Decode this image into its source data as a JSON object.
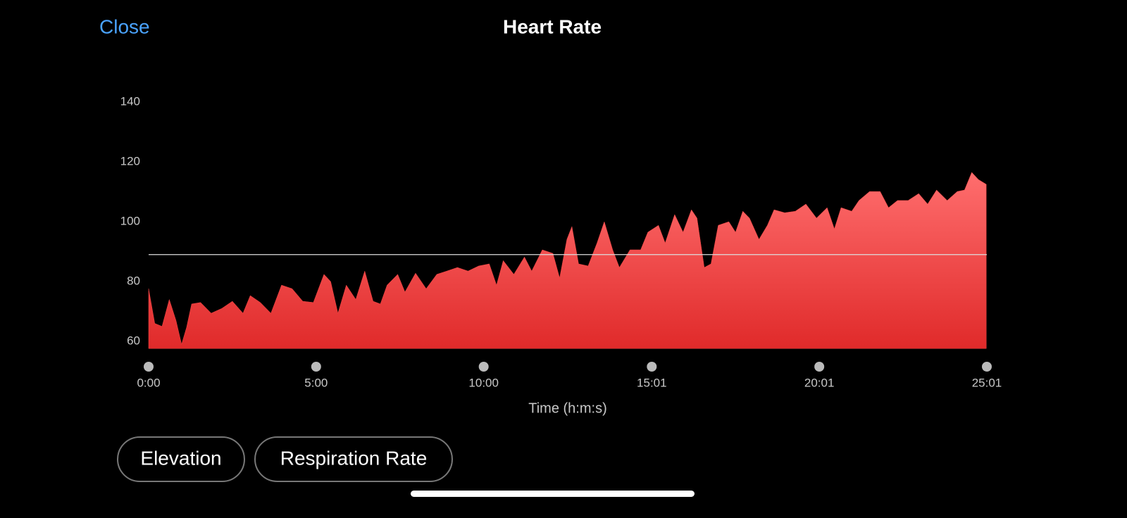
{
  "header": {
    "close": "Close"
  },
  "buttons": [
    "Elevation",
    "Respiration Rate"
  ],
  "chart_data": {
    "type": "area",
    "title": "Heart Rate",
    "x_label": "Time (h:m:s)",
    "color": "#f04444",
    "average_line": 89,
    "xlim": [
      0,
      1501
    ],
    "ylim": [
      57.6,
      140
    ],
    "yticks": [
      60,
      80,
      100,
      120,
      140
    ],
    "xticks": [
      {
        "value": 0,
        "label": "0:00"
      },
      {
        "value": 300,
        "label": "5:00"
      },
      {
        "value": 600,
        "label": "10:00"
      },
      {
        "value": 901,
        "label": "15:01"
      },
      {
        "value": 1201,
        "label": "20:01"
      },
      {
        "value": 1501,
        "label": "25:01"
      }
    ],
    "x": [
      0,
      11,
      24,
      37,
      49,
      59,
      68,
      77,
      93,
      112,
      131,
      150,
      169,
      182,
      200,
      219,
      238,
      257,
      276,
      295,
      314,
      326,
      339,
      354,
      371,
      387,
      402,
      415,
      427,
      446,
      459,
      478,
      497,
      516,
      534,
      553,
      572,
      591,
      610,
      623,
      635,
      654,
      673,
      686,
      705,
      724,
      736,
      749,
      758,
      770,
      787,
      803,
      816,
      831,
      843,
      862,
      881,
      894,
      913,
      925,
      942,
      957,
      972,
      982,
      995,
      1007,
      1020,
      1039,
      1051,
      1064,
      1076,
      1093,
      1108,
      1120,
      1139,
      1158,
      1177,
      1196,
      1215,
      1228,
      1240,
      1259,
      1272,
      1291,
      1310,
      1325,
      1341,
      1360,
      1379,
      1395,
      1411,
      1430,
      1448,
      1461,
      1474,
      1486,
      1500
    ],
    "values": [
      77.6,
      66,
      65,
      74,
      67,
      59,
      64.7,
      72.5,
      73,
      69.4,
      71,
      73.4,
      69.4,
      75.3,
      73,
      69.4,
      78.8,
      77.6,
      73.4,
      73,
      82.4,
      80,
      69.4,
      78.8,
      74,
      83.5,
      73.4,
      72.5,
      78.8,
      82.4,
      76.5,
      82.8,
      77.6,
      82.4,
      83.5,
      84.7,
      83.5,
      85.2,
      85.9,
      78.8,
      87,
      82.4,
      88.2,
      83.5,
      90.6,
      89.4,
      81.2,
      94.1,
      98.4,
      85.9,
      85.2,
      92.9,
      100,
      90.6,
      84.7,
      90.6,
      90.6,
      96.5,
      98.8,
      92.9,
      102.4,
      96.5,
      104,
      101.2,
      84.7,
      85.9,
      98.8,
      100,
      96.5,
      103.5,
      101.2,
      94.1,
      98.8,
      104,
      103,
      103.5,
      105.9,
      101.2,
      104.7,
      97.6,
      104.7,
      103.5,
      107.1,
      110.1,
      110.1,
      104.7,
      107.1,
      107.1,
      109.4,
      105.9,
      110.6,
      107.1,
      110.1,
      110.6,
      116.5,
      114.1,
      112.5
    ]
  }
}
